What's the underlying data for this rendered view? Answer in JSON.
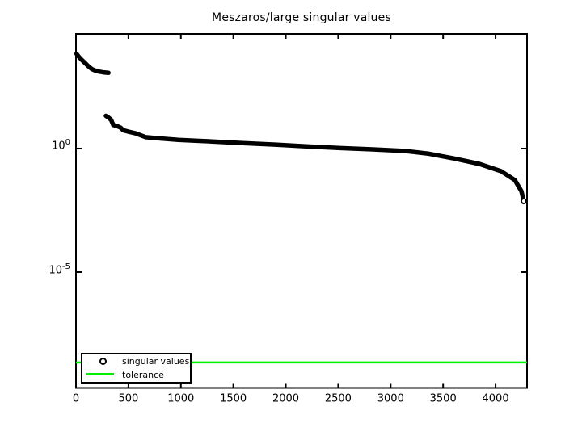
{
  "chart_data": {
    "type": "scatter",
    "title": "Meszaros/large singular values",
    "xlabel": "",
    "ylabel": "",
    "grid": false,
    "xlim": [
      0,
      4300
    ],
    "x_ticks": [
      0,
      500,
      1000,
      1500,
      2000,
      2500,
      3000,
      3500,
      4000
    ],
    "y_ticks": [
      {
        "base": "10",
        "exp": "0",
        "exponent": 0
      },
      {
        "base": "10",
        "exp": "-5",
        "exponent": -5
      }
    ],
    "ylim_exponents": [
      -9.7,
      4.64
    ],
    "legend": {
      "position": "southwest",
      "entries": [
        {
          "label": "singular values",
          "marker": "circle",
          "color": "#000000"
        },
        {
          "label": "tolerance",
          "marker": "line",
          "color": "#00ee00"
        }
      ]
    },
    "series": [
      {
        "name": "singular values",
        "marker": "o",
        "color": "#000000",
        "segments": [
          [
            [
              5,
              6900
            ],
            [
              30,
              5000
            ],
            [
              60,
              3700
            ],
            [
              90,
              2800
            ],
            [
              120,
              2100
            ],
            [
              150,
              1650
            ],
            [
              180,
              1450
            ],
            [
              220,
              1300
            ],
            [
              260,
              1220
            ],
            [
              310,
              1160
            ]
          ],
          [
            [
              285,
              21
            ],
            [
              310,
              18
            ],
            [
              335,
              14.5
            ],
            [
              355,
              9.0
            ],
            [
              395,
              8.0
            ],
            [
              425,
              7.0
            ],
            [
              450,
              5.5
            ],
            [
              505,
              4.8
            ],
            [
              570,
              4.1
            ],
            [
              665,
              2.9
            ],
            [
              780,
              2.6
            ],
            [
              975,
              2.25
            ],
            [
              1280,
              1.95
            ],
            [
              1590,
              1.65
            ],
            [
              1900,
              1.45
            ],
            [
              2210,
              1.22
            ],
            [
              2520,
              1.05
            ],
            [
              2830,
              0.93
            ],
            [
              3140,
              0.8
            ],
            [
              3365,
              0.62
            ],
            [
              3600,
              0.4
            ],
            [
              3845,
              0.24
            ],
            [
              4053,
              0.122
            ],
            [
              4184,
              0.053
            ],
            [
              4246,
              0.019
            ],
            [
              4269,
              0.0075
            ]
          ]
        ]
      },
      {
        "name": "tolerance",
        "type": "hline",
        "color": "#00ee00",
        "value": 2.2e-09
      }
    ]
  },
  "colors": {
    "background": "#ffffff",
    "axis": "#000000",
    "series": "#000000",
    "tolerance": "#00ee00"
  }
}
